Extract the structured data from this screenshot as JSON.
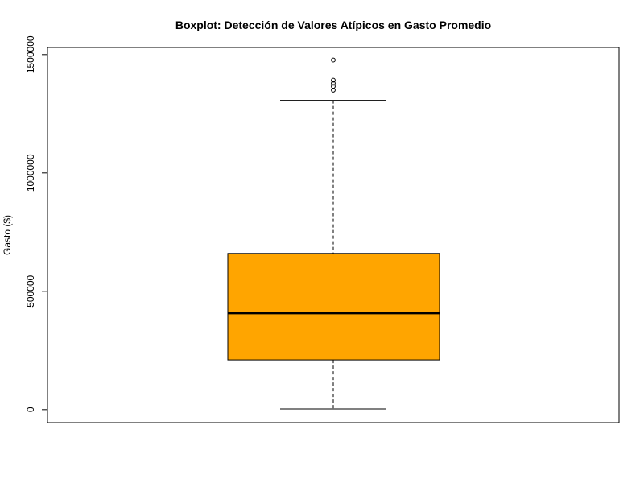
{
  "chart_data": {
    "type": "boxplot",
    "title": "Boxplot: Detección de Valores Atípicos en Gasto Promedio",
    "xlabel": "",
    "ylabel": "Gasto ($)",
    "ylim": [
      -55000,
      1530000
    ],
    "yticks": [
      0,
      500000,
      1000000,
      1500000
    ],
    "ytick_labels": [
      "0",
      "500000",
      "1000000",
      "1500000"
    ],
    "box": {
      "whisker_low": 3000,
      "q1": 210000,
      "median": 408000,
      "q3": 660000,
      "whisker_high": 1307000,
      "fill": "#FFA500"
    },
    "outliers": [
      1477000,
      1392000,
      1379000,
      1366000,
      1350000
    ],
    "grid": false
  }
}
